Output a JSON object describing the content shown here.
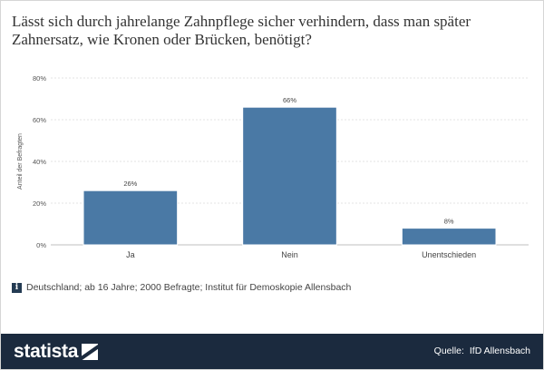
{
  "title": "Lässt sich durch jahrelange Zahnpflege sicher verhindern, dass man später Zahnersatz, wie Kronen oder Brücken, benötigt?",
  "chart_data": {
    "type": "bar",
    "categories": [
      "Ja",
      "Nein",
      "Unentschieden"
    ],
    "values": [
      26,
      66,
      8
    ],
    "value_labels": [
      "26%",
      "66%",
      "8%"
    ],
    "ylabel": "Anteil der Befragten",
    "ylim": [
      0,
      80
    ],
    "yticks": [
      0,
      20,
      40,
      60,
      80
    ],
    "ytick_labels": [
      "0%",
      "20%",
      "40%",
      "60%",
      "80%"
    ],
    "grid": true,
    "bar_color": "#4a79a5"
  },
  "note": {
    "icon": "info-icon",
    "icon_glyph": "i",
    "text": "Deutschland; ab 16 Jahre; 2000 Befragte; Institut für Demoskopie Allensbach"
  },
  "footer": {
    "brand": "statista",
    "source_label": "Quelle:",
    "source_value": "IfD Allensbach",
    "background": "#1b2a3e"
  }
}
